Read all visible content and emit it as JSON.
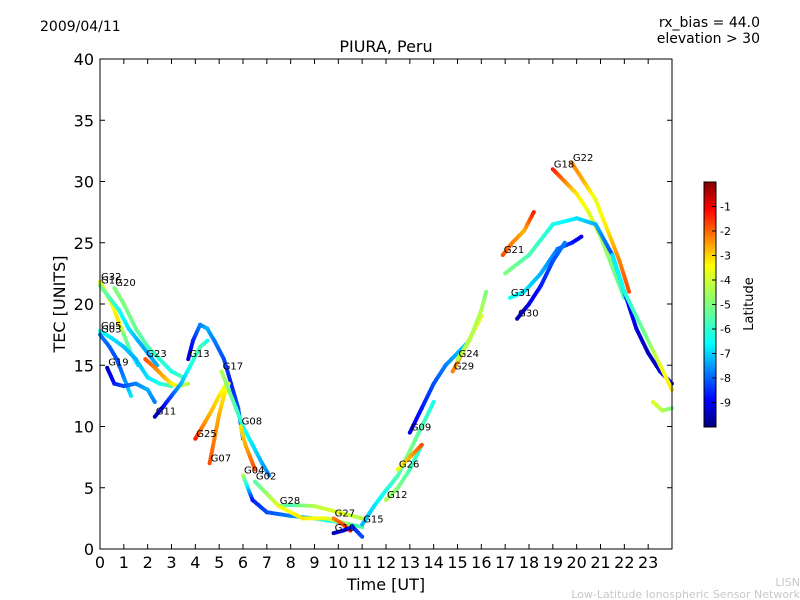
{
  "header": {
    "date": "2009/04/11",
    "rx_bias": "rx_bias = 44.0",
    "elevation": "elevation > 30"
  },
  "footer": {
    "org_short": "LISN",
    "org_long": "Low-Latitude Ionospheric Sensor Network"
  },
  "chart_data": {
    "type": "scatter",
    "title": "PIURA, Peru",
    "xlabel": "Time [UT]",
    "ylabel": "TEC [UNITS]",
    "xlim": [
      0,
      24
    ],
    "ylim": [
      0,
      40
    ],
    "xticks": [
      "0",
      "1",
      "2",
      "3",
      "4",
      "5",
      "6",
      "7",
      "8",
      "9",
      "10",
      "11",
      "12",
      "13",
      "14",
      "15",
      "16",
      "17",
      "18",
      "19",
      "20",
      "21",
      "22",
      "23"
    ],
    "yticks": [
      "0",
      "5",
      "10",
      "15",
      "20",
      "25",
      "30",
      "35",
      "40"
    ],
    "grid": false,
    "colorbar": {
      "label": "Latitude",
      "range": [
        -10,
        0
      ],
      "ticks": [
        "-1",
        "-2",
        "-3",
        "-4",
        "-5",
        "-6",
        "-7",
        "-8",
        "-9"
      ],
      "colors": [
        "#00007f",
        "#0000ff",
        "#007fff",
        "#00ffff",
        "#7fff7f",
        "#ffff00",
        "#ff7f00",
        "#ff0000",
        "#7f0000"
      ]
    },
    "series": [
      {
        "name": "G32",
        "points": [
          [
            0.0,
            21.8,
            -4.0
          ],
          [
            0.5,
            20.0,
            -3.8
          ],
          [
            0.8,
            18.5,
            -3.5
          ],
          [
            1.0,
            17.5,
            -5.0
          ],
          [
            1.3,
            16.0,
            -5.5
          ],
          [
            1.6,
            15.0,
            -6.5
          ]
        ]
      },
      {
        "name": "G16",
        "points": [
          [
            0.0,
            21.5,
            -5.0
          ],
          [
            0.4,
            20.5,
            -5.5
          ],
          [
            0.8,
            19.5,
            -6.0
          ],
          [
            1.2,
            18.0,
            -6.5
          ],
          [
            1.6,
            17.0,
            -7.0
          ],
          [
            2.0,
            16.0,
            -7.2
          ],
          [
            2.4,
            15.0,
            -7.0
          ]
        ]
      },
      {
        "name": "G20",
        "points": [
          [
            0.6,
            21.3,
            -5.0
          ],
          [
            1.0,
            20.0,
            -5.0
          ],
          [
            1.5,
            18.0,
            -5.2
          ],
          [
            2.0,
            16.5,
            -5.5
          ],
          [
            2.5,
            15.5,
            -5.8
          ],
          [
            3.0,
            14.5,
            -6.0
          ],
          [
            3.5,
            14.0,
            -5.5
          ]
        ]
      },
      {
        "name": "G05",
        "points": [
          [
            0.0,
            17.8,
            -6.0
          ],
          [
            0.5,
            17.2,
            -6.5
          ],
          [
            1.0,
            16.5,
            -6.8
          ],
          [
            1.5,
            15.5,
            -7.0
          ],
          [
            2.0,
            14.0,
            -6.5
          ],
          [
            2.5,
            13.5,
            -6.0
          ],
          [
            3.0,
            13.3,
            -5.5
          ]
        ]
      },
      {
        "name": "G03",
        "points": [
          [
            0.0,
            17.5,
            -7.5
          ],
          [
            0.4,
            16.5,
            -7.8
          ],
          [
            0.7,
            15.5,
            -8.0
          ],
          [
            1.0,
            14.0,
            -7.5
          ],
          [
            1.3,
            12.5,
            -6.5
          ]
        ]
      },
      {
        "name": "G19",
        "points": [
          [
            0.3,
            14.8,
            -9.5
          ],
          [
            0.6,
            13.5,
            -8.5
          ],
          [
            1.0,
            13.3,
            -8.0
          ],
          [
            1.5,
            13.5,
            -7.5
          ],
          [
            2.0,
            13.0,
            -7.0
          ],
          [
            2.3,
            12.0,
            -7.5
          ]
        ]
      },
      {
        "name": "G23",
        "points": [
          [
            1.9,
            15.5,
            -2.0
          ],
          [
            2.3,
            14.8,
            -2.5
          ],
          [
            2.7,
            14.0,
            -3.0
          ],
          [
            3.0,
            13.5,
            -3.5
          ],
          [
            3.3,
            13.3,
            -4.0
          ],
          [
            3.7,
            13.5,
            -4.5
          ]
        ]
      },
      {
        "name": "G11",
        "points": [
          [
            2.3,
            10.8,
            -9.5
          ],
          [
            2.6,
            11.5,
            -9.0
          ],
          [
            3.0,
            12.5,
            -8.0
          ],
          [
            3.4,
            13.5,
            -7.0
          ],
          [
            3.8,
            15.0,
            -6.0
          ],
          [
            4.2,
            16.5,
            -5.5
          ],
          [
            4.5,
            17.0,
            -6.0
          ]
        ]
      },
      {
        "name": "G13",
        "points": [
          [
            3.7,
            15.5,
            -9.0
          ],
          [
            3.9,
            17.0,
            -8.5
          ],
          [
            4.2,
            18.3,
            -7.5
          ],
          [
            4.5,
            18.0,
            -7.0
          ],
          [
            4.8,
            17.0,
            -7.5
          ],
          [
            5.2,
            15.5,
            -8.0
          ],
          [
            5.5,
            13.5,
            -8.5
          ],
          [
            5.8,
            11.5,
            -8.0
          ],
          [
            6.0,
            9.0,
            -7.5
          ]
        ]
      },
      {
        "name": "G25",
        "points": [
          [
            4.0,
            9.0,
            -1.5
          ],
          [
            4.3,
            10.0,
            -2.5
          ],
          [
            4.6,
            11.0,
            -3.0
          ],
          [
            5.0,
            12.5,
            -3.5
          ],
          [
            5.3,
            13.5,
            -4.0
          ]
        ]
      },
      {
        "name": "G07",
        "points": [
          [
            4.6,
            7.0,
            -2.0
          ],
          [
            4.8,
            9.0,
            -2.5
          ],
          [
            5.0,
            11.0,
            -3.0
          ],
          [
            5.2,
            12.5,
            -3.5
          ],
          [
            5.4,
            13.5,
            -4.0
          ]
        ]
      },
      {
        "name": "G17",
        "points": [
          [
            5.1,
            14.5,
            -4.5
          ],
          [
            5.4,
            13.0,
            -5.0
          ],
          [
            5.7,
            11.5,
            -5.5
          ],
          [
            6.0,
            10.0,
            -6.0
          ],
          [
            6.4,
            8.5,
            -6.5
          ],
          [
            6.8,
            7.0,
            -7.0
          ],
          [
            7.1,
            6.0,
            -7.5
          ]
        ]
      },
      {
        "name": "G08",
        "points": [
          [
            5.9,
            10.0,
            -3.5
          ],
          [
            6.1,
            8.5,
            -3.0
          ],
          [
            6.3,
            7.5,
            -2.5
          ],
          [
            6.5,
            6.5,
            -2.0
          ]
        ]
      },
      {
        "name": "G04",
        "points": [
          [
            6.0,
            6.0,
            -4.5
          ],
          [
            6.4,
            4.0,
            -8.5
          ],
          [
            7.0,
            3.0,
            -8.0
          ],
          [
            8.0,
            2.7,
            -7.5
          ],
          [
            9.0,
            2.5,
            -6.5
          ],
          [
            10.0,
            2.2,
            -6.0
          ],
          [
            11.0,
            1.8,
            -5.5
          ]
        ]
      },
      {
        "name": "G28",
        "points": [
          [
            7.5,
            3.5,
            -5.0
          ],
          [
            8.0,
            3.6,
            -5.5
          ],
          [
            9.0,
            3.5,
            -4.5
          ],
          [
            10.0,
            3.0,
            -4.0
          ],
          [
            11.0,
            2.5,
            -4.5
          ]
        ]
      },
      {
        "name": "G02",
        "points": [
          [
            6.5,
            5.5,
            -5.5
          ],
          [
            7.5,
            3.5,
            -4.0
          ],
          [
            8.5,
            2.5,
            -3.5
          ],
          [
            9.5,
            2.5,
            -4.0
          ],
          [
            10.5,
            2.0,
            -5.0
          ]
        ]
      },
      {
        "name": "G27",
        "points": [
          [
            9.8,
            2.5,
            -2.5
          ],
          [
            10.2,
            2.0,
            -2.0
          ],
          [
            10.5,
            1.5,
            -1.5
          ]
        ]
      },
      {
        "name": "G10",
        "points": [
          [
            9.8,
            1.3,
            -9.5
          ],
          [
            10.2,
            1.5,
            -9.0
          ],
          [
            10.6,
            1.8,
            -8.5
          ],
          [
            11.0,
            1.0,
            -8.0
          ]
        ]
      },
      {
        "name": "G15",
        "points": [
          [
            11.0,
            2.0,
            -7.0
          ],
          [
            11.5,
            3.5,
            -6.5
          ],
          [
            12.0,
            4.8,
            -6.0
          ],
          [
            12.5,
            6.0,
            -5.5
          ],
          [
            13.0,
            8.0,
            -5.0
          ],
          [
            13.5,
            10.0,
            -5.5
          ],
          [
            14.0,
            12.0,
            -6.0
          ]
        ]
      },
      {
        "name": "G12",
        "points": [
          [
            12.0,
            4.0,
            -4.5
          ],
          [
            12.5,
            5.0,
            -5.0
          ],
          [
            13.0,
            6.5,
            -5.5
          ],
          [
            13.5,
            8.5,
            -6.0
          ]
        ]
      },
      {
        "name": "G26",
        "points": [
          [
            12.5,
            6.5,
            -4.0
          ],
          [
            13.0,
            7.5,
            -3.0
          ],
          [
            13.5,
            8.5,
            -2.0
          ]
        ]
      },
      {
        "name": "G09",
        "points": [
          [
            13.0,
            9.5,
            -9.0
          ],
          [
            13.5,
            11.5,
            -8.5
          ],
          [
            14.0,
            13.5,
            -8.0
          ],
          [
            14.5,
            15.0,
            -7.5
          ],
          [
            15.0,
            16.0,
            -7.0
          ],
          [
            15.5,
            17.0,
            -6.5
          ]
        ]
      },
      {
        "name": "G29",
        "points": [
          [
            14.8,
            14.5,
            -2.5
          ],
          [
            15.2,
            16.0,
            -3.0
          ],
          [
            15.6,
            17.5,
            -3.5
          ],
          [
            16.0,
            19.0,
            -4.0
          ]
        ]
      },
      {
        "name": "G24",
        "points": [
          [
            15.0,
            15.5,
            -4.5
          ],
          [
            15.5,
            17.0,
            -4.5
          ],
          [
            16.0,
            19.5,
            -4.5
          ],
          [
            16.2,
            21.0,
            -5.0
          ]
        ]
      },
      {
        "name": "G21",
        "points": [
          [
            16.9,
            24.0,
            -2.0
          ],
          [
            17.3,
            25.0,
            -2.5
          ],
          [
            17.8,
            26.0,
            -3.0
          ],
          [
            18.2,
            27.5,
            -1.5
          ]
        ]
      },
      {
        "name": "G31",
        "points": [
          [
            17.2,
            20.5,
            -6.0
          ],
          [
            17.8,
            21.0,
            -6.5
          ],
          [
            18.5,
            22.5,
            -7.0
          ],
          [
            19.2,
            24.5,
            -7.5
          ],
          [
            19.8,
            25.0,
            -8.5
          ],
          [
            20.2,
            25.5,
            -9.0
          ]
        ]
      },
      {
        "name": "G30",
        "points": [
          [
            17.5,
            18.8,
            -9.5
          ],
          [
            18.0,
            20.0,
            -9.0
          ],
          [
            18.5,
            21.5,
            -8.5
          ],
          [
            19.0,
            23.5,
            -8.0
          ],
          [
            19.5,
            25.0,
            -7.5
          ]
        ]
      },
      {
        "name": "G18",
        "points": [
          [
            19.0,
            31.0,
            -1.5
          ],
          [
            19.5,
            30.0,
            -2.5
          ],
          [
            20.0,
            29.0,
            -3.5
          ],
          [
            20.5,
            27.5,
            -4.0
          ],
          [
            21.0,
            25.5,
            -4.5
          ],
          [
            21.5,
            23.0,
            -5.0
          ],
          [
            22.0,
            20.5,
            -5.5
          ]
        ]
      },
      {
        "name": "G22",
        "points": [
          [
            19.8,
            31.5,
            -2.5
          ],
          [
            20.3,
            30.0,
            -3.0
          ],
          [
            20.8,
            28.5,
            -4.0
          ],
          [
            21.3,
            26.0,
            -3.5
          ],
          [
            21.8,
            23.5,
            -2.5
          ],
          [
            22.2,
            21.0,
            -2.0
          ]
        ]
      },
      {
        "name": "",
        "points": [
          [
            17.0,
            22.5,
            -5.0
          ],
          [
            18.0,
            24.0,
            -5.5
          ],
          [
            19.0,
            26.5,
            -6.0
          ],
          [
            20.0,
            27.0,
            -6.5
          ],
          [
            20.8,
            26.5,
            -7.0
          ],
          [
            21.5,
            24.0,
            -8.0
          ],
          [
            22.0,
            21.0,
            -8.5
          ],
          [
            22.5,
            18.0,
            -9.0
          ],
          [
            23.0,
            16.0,
            -9.5
          ],
          [
            23.5,
            14.5,
            -9.0
          ],
          [
            24.0,
            13.5,
            -8.5
          ]
        ]
      },
      {
        "name": "",
        "points": [
          [
            21.5,
            24.0,
            -6.5
          ],
          [
            22.0,
            21.0,
            -6.0
          ],
          [
            22.5,
            19.0,
            -5.5
          ],
          [
            23.0,
            17.0,
            -5.0
          ],
          [
            23.5,
            15.0,
            -4.0
          ],
          [
            24.0,
            13.0,
            -3.5
          ]
        ]
      },
      {
        "name": "",
        "points": [
          [
            23.2,
            12.0,
            -4.0
          ],
          [
            23.6,
            11.3,
            -4.5
          ],
          [
            24.0,
            11.5,
            -5.0
          ]
        ]
      }
    ]
  }
}
